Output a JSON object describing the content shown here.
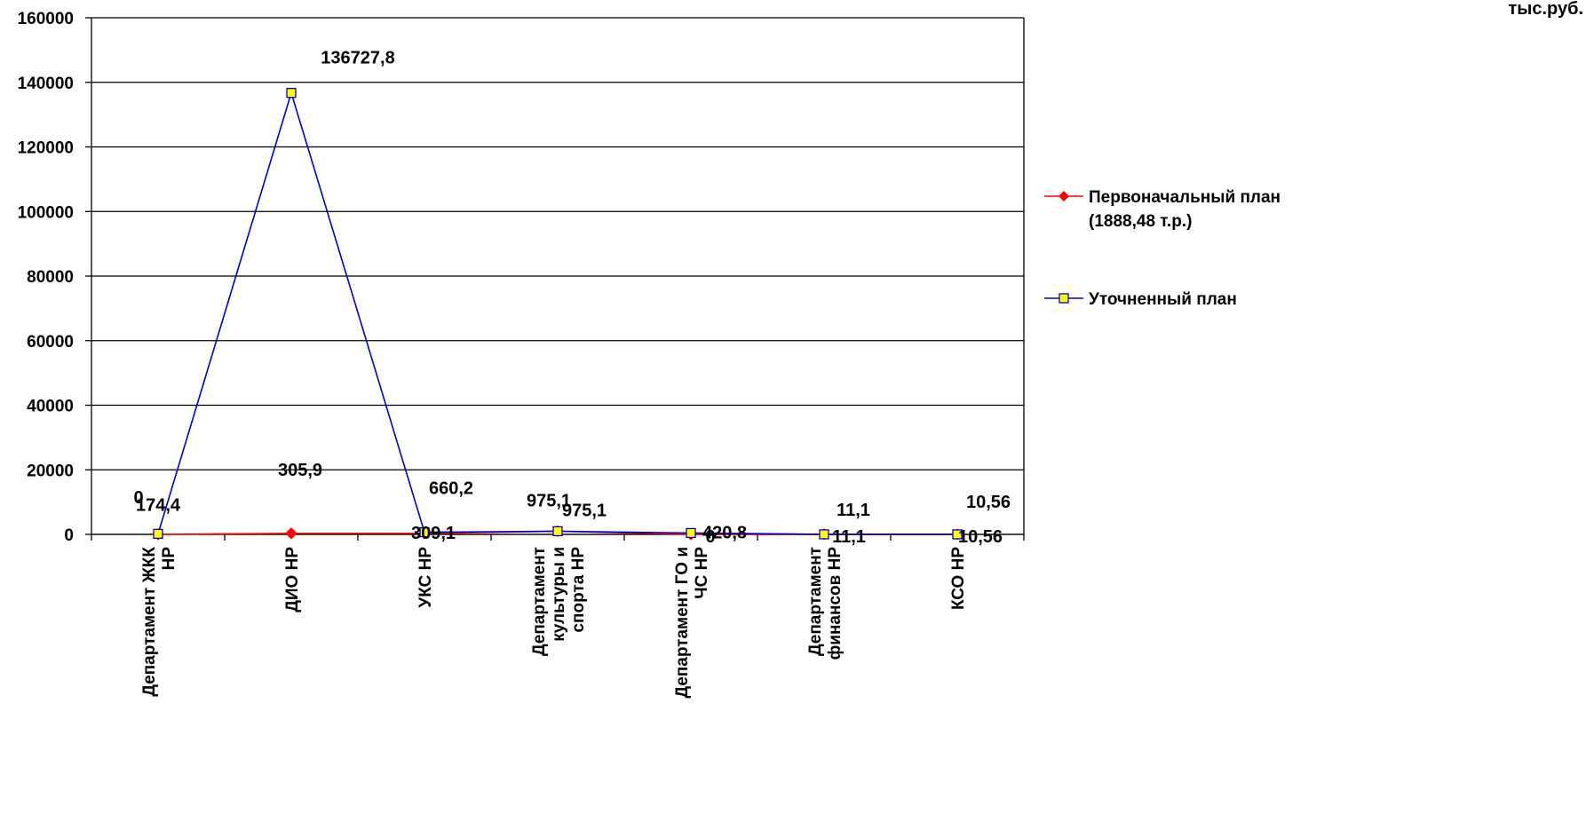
{
  "chart_data": {
    "type": "line",
    "unit_label": "тыс.руб.",
    "categories": [
      "Департамент ЖКК НР",
      "ДИО НР",
      "УКС НР",
      "Департамент культуры и спорта НР",
      "Департамент ГО и ЧС НР",
      "Департамент финансов НР",
      "КСО НР"
    ],
    "ylim": [
      0,
      160000
    ],
    "yticks": [
      "0",
      "20000",
      "40000",
      "60000",
      "80000",
      "100000",
      "120000",
      "140000",
      "160000"
    ],
    "grid": true,
    "legend_position": "right",
    "series": [
      {
        "name": "Первоначальный план (1888,48 т.р.)",
        "color": "#ff0000",
        "marker": "diamond",
        "values": [
          0,
          305.9,
          309.1,
          975.1,
          0,
          11.1,
          10.56
        ],
        "labels": [
          "0",
          "305,9",
          "309,1",
          "975,1",
          "0",
          "11,1",
          "10,56"
        ]
      },
      {
        "name": "Уточненный план",
        "color": "#0000cc",
        "marker": "square",
        "marker_fill": "#ffff00",
        "values": [
          174.4,
          136727.8,
          660.2,
          975.1,
          420.8,
          11.1,
          10.56
        ],
        "labels": [
          "174,4",
          "136727,8",
          "660,2",
          "975,1",
          "420,8",
          "11,1",
          "10,56"
        ]
      }
    ]
  }
}
